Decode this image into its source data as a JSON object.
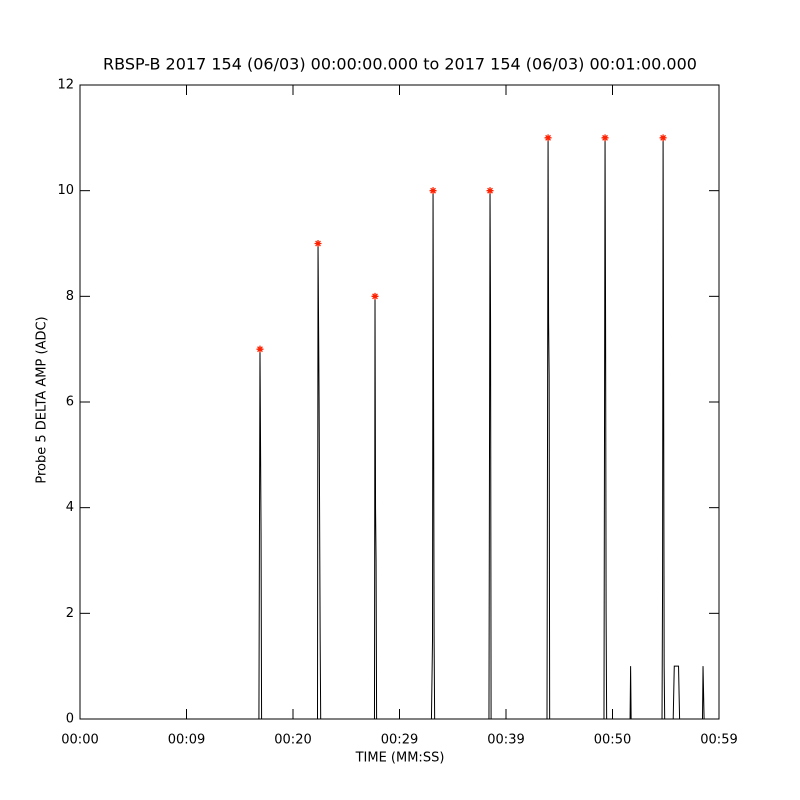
{
  "chart_data": {
    "type": "line",
    "title": "RBSP-B 2017 154 (06/03) 00:00:00.000 to 2017 154 (06/03) 00:01:00.000",
    "x_label": "TIME (MM:SS)",
    "y_label": "Probe 5 DELTA AMP (ADC)",
    "xlim": [
      0,
      60
    ],
    "ylim": [
      0,
      12
    ],
    "xticks": [
      {
        "value": 0,
        "label": "00:00"
      },
      {
        "value": 10,
        "label": "00:09"
      },
      {
        "value": 20,
        "label": "00:20"
      },
      {
        "value": 30,
        "label": "00:29"
      },
      {
        "value": 40,
        "label": "00:39"
      },
      {
        "value": 50,
        "label": "00:50"
      },
      {
        "value": 60,
        "label": "00:59"
      }
    ],
    "yticks": [
      0,
      2,
      4,
      6,
      8,
      10,
      12
    ],
    "series": [
      {
        "kind": "line",
        "color": "#000000",
        "x": [
          0,
          16.8,
          16.9,
          17.0,
          17.05,
          22.3,
          22.35,
          22.45,
          22.55,
          22.6,
          27.65,
          27.7,
          27.75,
          27.8,
          27.85,
          33.0,
          33.1,
          33.15,
          33.2,
          33.25,
          33.3,
          38.4,
          38.45,
          38.5,
          38.55,
          38.6,
          43.85,
          43.95,
          44.0,
          44.05,
          44.1,
          49.2,
          49.3,
          49.35,
          49.4,
          49.45,
          51.65,
          51.7,
          51.75,
          54.65,
          54.7,
          54.75,
          54.8,
          54.85,
          54.9,
          55.7,
          55.8,
          56.2,
          56.3,
          58.45,
          58.5,
          58.55,
          58.6,
          60
        ],
        "values": [
          0,
          0,
          7,
          3.5,
          0,
          0,
          9,
          6,
          1.5,
          0,
          0,
          8,
          4,
          3,
          0,
          0,
          1.5,
          10,
          6,
          1.5,
          0,
          0,
          5,
          10,
          7.5,
          0,
          0,
          11,
          7.5,
          6.5,
          0,
          0,
          11,
          7.5,
          2,
          0,
          0,
          1,
          0,
          0,
          2.5,
          11,
          6.5,
          1,
          0,
          0,
          1,
          1,
          0,
          0,
          1,
          0.5,
          0,
          0
        ]
      },
      {
        "kind": "peaks",
        "color": "#ff2000",
        "x": [
          16.9,
          22.35,
          27.7,
          33.15,
          38.5,
          43.95,
          49.3,
          54.75
        ],
        "values": [
          7,
          9,
          8,
          10,
          10,
          11,
          11,
          11
        ]
      }
    ]
  }
}
